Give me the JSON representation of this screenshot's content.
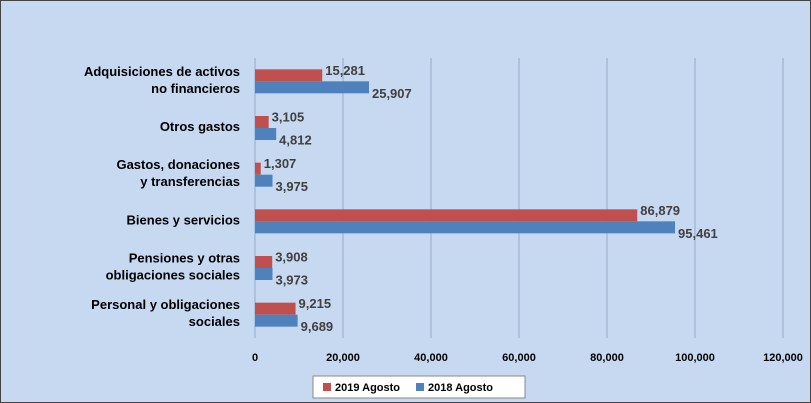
{
  "chart_data": {
    "type": "barh",
    "categories": [
      [
        "Adquisiciones de activos",
        "no financieros"
      ],
      [
        "Otros gastos"
      ],
      [
        "Gastos, donaciones",
        "y transferencias"
      ],
      [
        "Bienes y servicios"
      ],
      [
        "Pensiones y otras",
        "obligaciones sociales"
      ],
      [
        "Personal y obligaciones",
        "sociales"
      ]
    ],
    "series": [
      {
        "name": "2019 Agosto",
        "color": "#c0504d",
        "values": [
          15281,
          3105,
          1307,
          86879,
          3908,
          9215
        ],
        "value_labels": [
          "15,281",
          "3,105",
          "1,307",
          "86,879",
          "3,908",
          "9,215"
        ]
      },
      {
        "name": "2018 Agosto",
        "color": "#4f81bd",
        "values": [
          25907,
          4812,
          3975,
          95461,
          3973,
          9689
        ],
        "value_labels": [
          "25,907",
          "4,812",
          "3,975",
          "95,461",
          "3,973",
          "9,689"
        ]
      }
    ],
    "xlim": [
      0,
      120000
    ],
    "xticks": [
      0,
      {
        "value": 20000,
        "label": "20,000"
      },
      {
        "value": 40000,
        "label": "40,000"
      },
      {
        "value": 60000,
        "label": "60,000"
      },
      {
        "value": 80000,
        "label": "80,000"
      },
      {
        "value": 100000,
        "label": "100,000"
      },
      {
        "value": 120000,
        "label": "120,000"
      }
    ],
    "grid": true,
    "legend": "bottom"
  }
}
